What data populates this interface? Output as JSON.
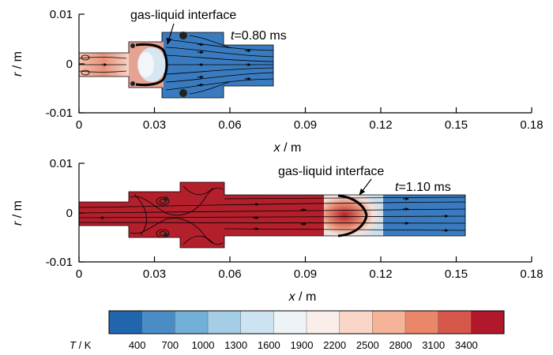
{
  "panels": [
    {
      "id": "top",
      "time_label": "t =0.80 ms",
      "time_var": "t",
      "time_value": "=0.80 ms",
      "annotation": "gas-liquid interface",
      "x_label_var": "x",
      "x_label_unit": " / m",
      "y_label_var": "r",
      "y_label_unit": " / m",
      "x_ticks": [
        "0",
        "0.03",
        "0.06",
        "0.09",
        "0.12",
        "0.15",
        "0.18"
      ],
      "y_ticks": [
        "0.01",
        "0",
        "-0.01"
      ]
    },
    {
      "id": "bottom",
      "time_label": "t =1.10 ms",
      "time_var": "t",
      "time_value": "=1.10 ms",
      "annotation": "gas-liquid interface",
      "x_label_var": "x",
      "x_label_unit": " / m",
      "y_label_var": "r",
      "y_label_unit": " / m",
      "x_ticks": [
        "0",
        "0.03",
        "0.06",
        "0.09",
        "0.12",
        "0.15",
        "0.18"
      ],
      "y_ticks": [
        "0.01",
        "0",
        "-0.01"
      ]
    }
  ],
  "colorbar": {
    "label_var": "T",
    "label_unit": " / K",
    "ticks": [
      "400",
      "700",
      "1000",
      "1300",
      "1600",
      "1900",
      "2200",
      "2500",
      "2800",
      "3100",
      "3400"
    ],
    "colors": [
      "#2166ac",
      "#4a8cc6",
      "#72b0d8",
      "#a4cde6",
      "#cde3f1",
      "#eef3f7",
      "#f9eeea",
      "#f9d6c8",
      "#f5b39a",
      "#ea8769",
      "#d6584a",
      "#b2182b"
    ]
  },
  "colors": {
    "hot": "#b3202c",
    "cold": "#3a7bbf"
  }
}
